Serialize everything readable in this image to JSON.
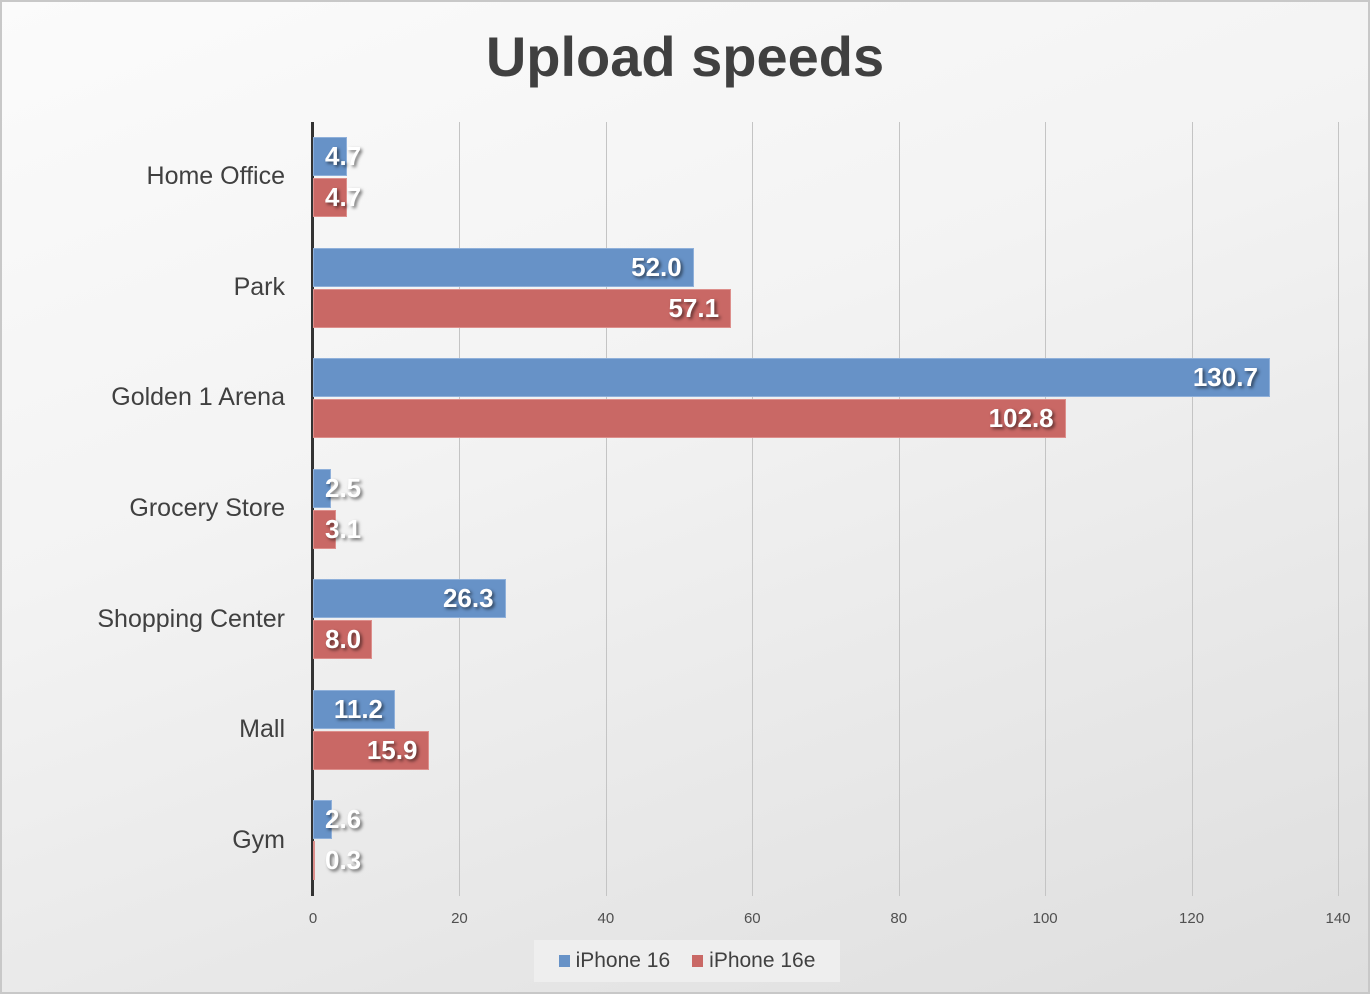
{
  "chart_data": {
    "type": "bar",
    "orientation": "horizontal",
    "title": "Upload speeds",
    "xlabel": "",
    "ylabel": "",
    "xlim": [
      0,
      140
    ],
    "x_ticks": [
      "0",
      "20",
      "40",
      "60",
      "80",
      "100",
      "120",
      "140"
    ],
    "grid": true,
    "legend_position": "bottom",
    "categories": [
      "Home Office",
      "Park",
      "Golden 1 Arena",
      "Grocery Store",
      "Shopping Center",
      "Mall",
      "Gym"
    ],
    "series": [
      {
        "name": "iPhone 16",
        "color": "#6792c7",
        "values": [
          4.7,
          52.0,
          130.7,
          2.5,
          26.3,
          11.2,
          2.6
        ],
        "labels": [
          "4.7",
          "52.0",
          "130.7",
          "2.5",
          "26.3",
          "11.2",
          "2.6"
        ]
      },
      {
        "name": "iPhone 16e",
        "color": "#c96865",
        "values": [
          4.7,
          57.1,
          102.8,
          3.1,
          8.0,
          15.9,
          0.3
        ],
        "labels": [
          "4.7",
          "57.1",
          "102.8",
          "3.1",
          "8.0",
          "15.9",
          "0.3"
        ]
      }
    ]
  },
  "legend": [
    {
      "label": "iPhone 16",
      "color": "#6792c7"
    },
    {
      "label": "iPhone 16e",
      "color": "#c96865"
    }
  ]
}
